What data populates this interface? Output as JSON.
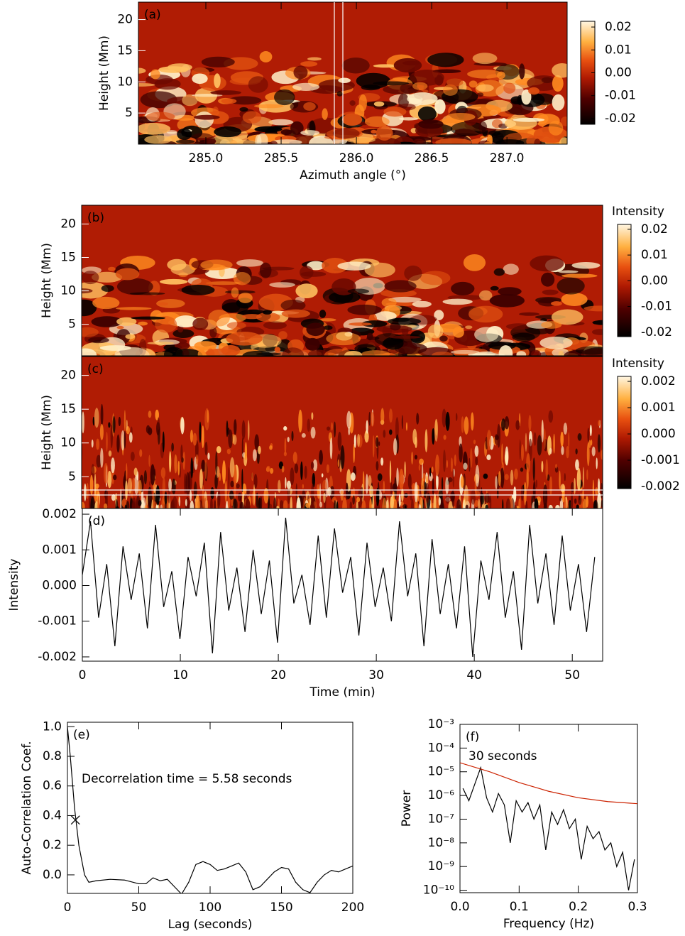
{
  "chart_data": [
    {
      "type": "heatmap",
      "panel_label": "(a)",
      "ylabel": "Height (Mm)",
      "xlabel": "Azimuth angle (°)",
      "xlim": [
        284.552,
        287.4
      ],
      "ylim": [
        0,
        22.8
      ],
      "xticks": [
        {
          "value": 285,
          "label": "285.0"
        },
        285.5,
        {
          "value": 286,
          "label": "286.0"
        },
        286.5,
        {
          "value": 287,
          "label": "287.0"
        }
      ],
      "yticks": [
        5,
        10,
        15,
        20
      ],
      "colorbar": {
        "clim": [
          -0.0225,
          0.0225
        ],
        "ticks": [
          0.02,
          0.01,
          {
            "value": 0,
            "label": "0.00"
          },
          -0.01,
          -0.02
        ]
      }
    },
    {
      "type": "heatmap",
      "panel_label": "(b)",
      "ylabel": "Height (Mm)",
      "xlim": [
        0,
        53.1
      ],
      "ylim": [
        0.3,
        22.8
      ],
      "yticks": [
        5,
        10,
        15,
        20
      ],
      "colorbar": {
        "title": "Intensity",
        "clim": [
          -0.0217,
          0.0219
        ],
        "ticks": [
          0.02,
          0.01,
          {
            "value": 0,
            "label": "0.00"
          },
          -0.01,
          -0.02
        ]
      }
    },
    {
      "type": "heatmap",
      "panel_label": "(c)",
      "ylabel": "Height (Mm)",
      "xlim": [
        0,
        53.1
      ],
      "ylim": [
        0.3,
        22.8
      ],
      "yticks": [
        5,
        10,
        15,
        20
      ],
      "colorbar": {
        "title": "Intensity",
        "clim": [
          -0.00208,
          0.00219
        ],
        "ticks": [
          0.002,
          0.001,
          {
            "value": 0,
            "label": "0.000"
          },
          -0.001,
          -0.002
        ]
      }
    },
    {
      "type": "line",
      "panel_label": "(d)",
      "ylabel": "Intensity",
      "xlabel": "Time (min)",
      "xlim": [
        0,
        53.1
      ],
      "ylim": [
        -0.00212,
        0.00216
      ],
      "xticks": [
        0,
        10,
        20,
        30,
        40,
        50
      ],
      "yticks": [
        0.002,
        0.001,
        {
          "value": 0,
          "label": "0.000"
        },
        -0.001,
        -0.002
      ],
      "series": [
        {
          "color": "#000000",
          "x": [
            0,
            0.83,
            1.66,
            2.49,
            3.32,
            4.15,
            4.98,
            5.81,
            6.64,
            7.47,
            8.3,
            9.13,
            9.96,
            10.79,
            11.62,
            12.45,
            13.28,
            14.11,
            14.94,
            15.77,
            16.6,
            17.43,
            18.26,
            19.09,
            19.92,
            20.75,
            21.58,
            22.41,
            23.24,
            24.07,
            24.9,
            25.73,
            26.56,
            27.39,
            28.22,
            29.05,
            29.88,
            30.71,
            31.54,
            32.37,
            33.2,
            34.03,
            34.86,
            35.69,
            36.52,
            37.35,
            38.18,
            39.01,
            39.84,
            40.67,
            41.5,
            42.33,
            43.16,
            43.99,
            44.82,
            45.65,
            46.48,
            47.31,
            48.14,
            48.97,
            49.8,
            50.63,
            51.46,
            52.29
          ],
          "values": [
            0.0003,
            0.0018,
            -0.0009,
            0.0006,
            -0.0017,
            0.0011,
            -0.0004,
            0.0009,
            -0.0012,
            0.0017,
            -0.0006,
            0.0004,
            -0.0015,
            0.0008,
            -0.0003,
            0.0012,
            -0.0019,
            0.0015,
            -0.0007,
            0.0005,
            -0.0013,
            0.001,
            -0.0008,
            0.0007,
            -0.0016,
            0.0019,
            -0.0005,
            0.0003,
            -0.0011,
            0.0014,
            -0.0009,
            0.0016,
            -0.0002,
            0.0008,
            -0.0014,
            0.0012,
            -0.0006,
            0.0005,
            -0.001,
            0.0018,
            -0.0003,
            0.0009,
            -0.0017,
            0.0013,
            -0.0008,
            0.0006,
            -0.0012,
            0.0011,
            -0.002,
            0.0007,
            -0.0004,
            0.0015,
            -0.0009,
            0.0004,
            -0.0018,
            0.0017,
            -0.0005,
            0.0009,
            -0.0011,
            0.0014,
            -0.0007,
            0.0006,
            -0.0013,
            0.0008
          ]
        }
      ]
    },
    {
      "type": "line",
      "panel_label": "(e)",
      "ylabel": "Auto-Correlation Coef.",
      "xlabel": "Lag (seconds)",
      "annotation": "Decorrelation time = 5.58 seconds",
      "xlim": [
        0,
        200
      ],
      "ylim": [
        -0.125,
        1.03
      ],
      "xticks": [
        0,
        50,
        100,
        150,
        200
      ],
      "yticks": [
        {
          "value": 1,
          "label": "1.0"
        },
        0.8,
        0.6,
        0.4,
        0.2,
        {
          "value": 0,
          "label": "0.0"
        }
      ],
      "series": [
        {
          "color": "#000000",
          "x": [
            0,
            2,
            5,
            8,
            12,
            15,
            20,
            30,
            40,
            50,
            55,
            60,
            65,
            70,
            75,
            80,
            85,
            90,
            95,
            100,
            105,
            110,
            115,
            120,
            125,
            130,
            135,
            140,
            145,
            150,
            155,
            160,
            165,
            170,
            175,
            180,
            185,
            190,
            195,
            200
          ],
          "values": [
            1,
            0.8,
            0.45,
            0.2,
            0,
            -0.05,
            -0.04,
            -0.03,
            -0.035,
            -0.06,
            -0.06,
            -0.02,
            -0.04,
            -0.03,
            -0.08,
            -0.13,
            -0.05,
            0.07,
            0.09,
            0.07,
            0.03,
            0.04,
            0.06,
            0.08,
            0.02,
            -0.1,
            -0.08,
            -0.03,
            0.02,
            0.05,
            0.04,
            -0.05,
            -0.1,
            -0.12,
            -0.05,
            0,
            0.03,
            0.02,
            0.04,
            0.06
          ]
        },
        {
          "color": "#000000",
          "marker": "x",
          "x": [
            5.58
          ],
          "values": [
            0.37
          ]
        }
      ]
    },
    {
      "type": "line",
      "panel_label": "(f)",
      "ylabel": "Power",
      "xlabel": "Frequency (Hz)",
      "annotation": "30 seconds",
      "log_y": true,
      "xlim": [
        0,
        0.3
      ],
      "ylim": [
        7.9e-11,
        0.001
      ],
      "xticks": [
        {
          "value": 0,
          "label": "0.0"
        },
        0.1,
        0.2,
        0.3
      ],
      "yticks": [
        {
          "value": 0.001,
          "label": "10⁻³"
        },
        {
          "value": 0.0001,
          "label": "10⁻⁴"
        },
        {
          "value": 1e-05,
          "label": "10⁻⁵"
        },
        {
          "value": 1e-06,
          "label": "10⁻⁶"
        },
        {
          "value": 1e-07,
          "label": "10⁻⁷"
        },
        {
          "value": 1e-08,
          "label": "10⁻⁸"
        },
        {
          "value": 1e-09,
          "label": "10⁻⁹"
        },
        {
          "value": 1e-10,
          "label": "10⁻¹⁰"
        }
      ],
      "series": [
        {
          "color": "#000000",
          "x": [
            0.005,
            0.015,
            0.025,
            0.035,
            0.045,
            0.055,
            0.065,
            0.075,
            0.085,
            0.095,
            0.105,
            0.115,
            0.125,
            0.135,
            0.145,
            0.155,
            0.165,
            0.175,
            0.185,
            0.195,
            0.205,
            0.215,
            0.225,
            0.235,
            0.245,
            0.255,
            0.265,
            0.275,
            0.285,
            0.295
          ],
          "values": [
            2e-06,
            6e-07,
            3e-06,
            1.5e-05,
            8e-07,
            2e-07,
            1.2e-06,
            4e-07,
            1e-08,
            6e-07,
            2e-07,
            5e-07,
            1e-07,
            4e-07,
            5e-09,
            2e-07,
            6e-08,
            2.5e-07,
            4e-08,
            1e-07,
            2e-09,
            5e-08,
            1.5e-08,
            3e-08,
            5e-09,
            1e-08,
            1e-09,
            4e-09,
            1e-10,
            2e-09
          ]
        },
        {
          "color": "#cc2200",
          "x": [
            0,
            0.05,
            0.1,
            0.15,
            0.2,
            0.25,
            0.3
          ],
          "values": [
            2.4e-05,
            1e-05,
            3.5e-06,
            1.5e-06,
            8e-07,
            5.5e-07,
            4.5e-07
          ]
        }
      ]
    }
  ]
}
